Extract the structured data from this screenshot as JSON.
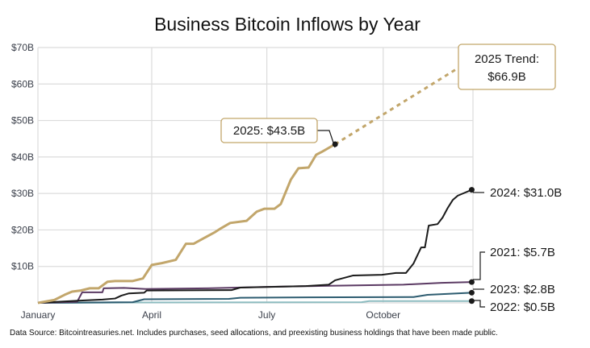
{
  "chart_data": {
    "type": "line",
    "title": "Business Bitcoin Inflows by Year",
    "xlabel": "",
    "ylabel": "",
    "x_axis": "month-day of year",
    "xlim": [
      "01-01",
      "12-11"
    ],
    "ylim": [
      0,
      70
    ],
    "y_ticks": [
      0,
      10,
      20,
      30,
      40,
      50,
      60,
      70
    ],
    "y_tick_labels": [
      "",
      "$10B",
      "$20B",
      "$30B",
      "$40B",
      "$50B",
      "$60B",
      "$70B"
    ],
    "x_ticks": [
      "01-01",
      "04-01",
      "07-01",
      "10-01"
    ],
    "x_tick_labels": [
      "January",
      "April",
      "July",
      "October"
    ],
    "grid": true,
    "legend": "none (direct end labels)",
    "series": [
      {
        "name": "2022",
        "color": "#8dbcc0",
        "points": [
          [
            "01-01",
            0
          ],
          [
            "03-20",
            0.1
          ],
          [
            "09-14",
            0.2
          ],
          [
            "09-20",
            0.5
          ],
          [
            "12-10",
            0.5
          ]
        ]
      },
      {
        "name": "2023",
        "color": "#2d5c70",
        "points": [
          [
            "01-01",
            0
          ],
          [
            "03-17",
            0.2
          ],
          [
            "03-26",
            1.0
          ],
          [
            "06-01",
            1.1
          ],
          [
            "06-10",
            1.4
          ],
          [
            "07-20",
            1.5
          ],
          [
            "10-25",
            1.6
          ],
          [
            "11-05",
            2.2
          ],
          [
            "12-10",
            2.8
          ]
        ]
      },
      {
        "name": "2021",
        "color": "#5b3a63",
        "points": [
          [
            "01-01",
            0
          ],
          [
            "02-01",
            0.3
          ],
          [
            "02-05",
            2.9
          ],
          [
            "02-21",
            2.9
          ],
          [
            "02-22",
            4.0
          ],
          [
            "03-10",
            4.1
          ],
          [
            "03-27",
            3.8
          ],
          [
            "05-15",
            4.0
          ],
          [
            "07-01",
            4.4
          ],
          [
            "08-20",
            4.7
          ],
          [
            "10-17",
            5.0
          ],
          [
            "11-16",
            5.5
          ],
          [
            "12-10",
            5.7
          ]
        ]
      },
      {
        "name": "2024",
        "color": "#1a1a1a",
        "points": [
          [
            "01-01",
            0
          ],
          [
            "02-02",
            0.6
          ],
          [
            "02-21",
            0.9
          ],
          [
            "03-03",
            1.2
          ],
          [
            "03-08",
            2.0
          ],
          [
            "03-14",
            2.6
          ],
          [
            "03-26",
            2.8
          ],
          [
            "03-28",
            3.4
          ],
          [
            "06-03",
            3.5
          ],
          [
            "06-10",
            4.2
          ],
          [
            "08-01",
            4.6
          ],
          [
            "08-19",
            5.0
          ],
          [
            "08-24",
            6.2
          ],
          [
            "09-07",
            7.5
          ],
          [
            "09-30",
            7.7
          ],
          [
            "10-11",
            8.2
          ],
          [
            "10-19",
            8.2
          ],
          [
            "10-25",
            10.8
          ],
          [
            "10-31",
            15.2
          ],
          [
            "11-03",
            15.2
          ],
          [
            "11-06",
            21.2
          ],
          [
            "11-13",
            21.6
          ],
          [
            "11-17",
            23.4
          ],
          [
            "11-21",
            26.0
          ],
          [
            "11-25",
            28.2
          ],
          [
            "11-29",
            29.4
          ],
          [
            "12-10",
            31.0
          ]
        ]
      },
      {
        "name": "2025",
        "color": "#c2a66b",
        "points": [
          [
            "01-01",
            0
          ],
          [
            "01-14",
            0.8
          ],
          [
            "01-22",
            2.2
          ],
          [
            "01-28",
            3.1
          ],
          [
            "02-04",
            3.4
          ],
          [
            "02-11",
            4.0
          ],
          [
            "02-18",
            4.0
          ],
          [
            "02-25",
            5.8
          ],
          [
            "03-03",
            6.0
          ],
          [
            "03-17",
            6.0
          ],
          [
            "03-25",
            6.7
          ],
          [
            "04-01",
            10.4
          ],
          [
            "04-09",
            10.9
          ],
          [
            "04-20",
            11.8
          ],
          [
            "04-28",
            16.2
          ],
          [
            "05-04",
            16.2
          ],
          [
            "05-12",
            17.7
          ],
          [
            "05-21",
            19.4
          ],
          [
            "05-26",
            20.5
          ],
          [
            "06-02",
            21.9
          ],
          [
            "06-15",
            22.5
          ],
          [
            "06-23",
            25.0
          ],
          [
            "06-29",
            25.8
          ],
          [
            "07-07",
            25.8
          ],
          [
            "07-12",
            27.1
          ],
          [
            "07-20",
            33.8
          ],
          [
            "07-26",
            36.9
          ],
          [
            "08-03",
            37.1
          ],
          [
            "08-09",
            40.6
          ],
          [
            "08-14",
            41.5
          ],
          [
            "08-24",
            43.5
          ]
        ]
      }
    ],
    "trend": {
      "name": "2025 Trend",
      "color": "#c2a66b",
      "style": "dotted",
      "points": [
        [
          "08-24",
          43.5
        ],
        [
          "12-11",
          66.9
        ]
      ]
    },
    "annotations": {
      "a2025": "2025: $43.5B",
      "trend_line1": "2025 Trend:",
      "trend_line2": "$66.9B",
      "a2024": "2024: $31.0B",
      "a2021": "2021: $5.7B",
      "a2023": "2023: $2.8B",
      "a2022": "2022: $0.5B"
    },
    "annotation_box_border": "#c2a66b",
    "source_note": "Data Source: Bitcointreasuries.net. Includes purchases, seed allocations, and preexisting business holdings that have been made public."
  }
}
